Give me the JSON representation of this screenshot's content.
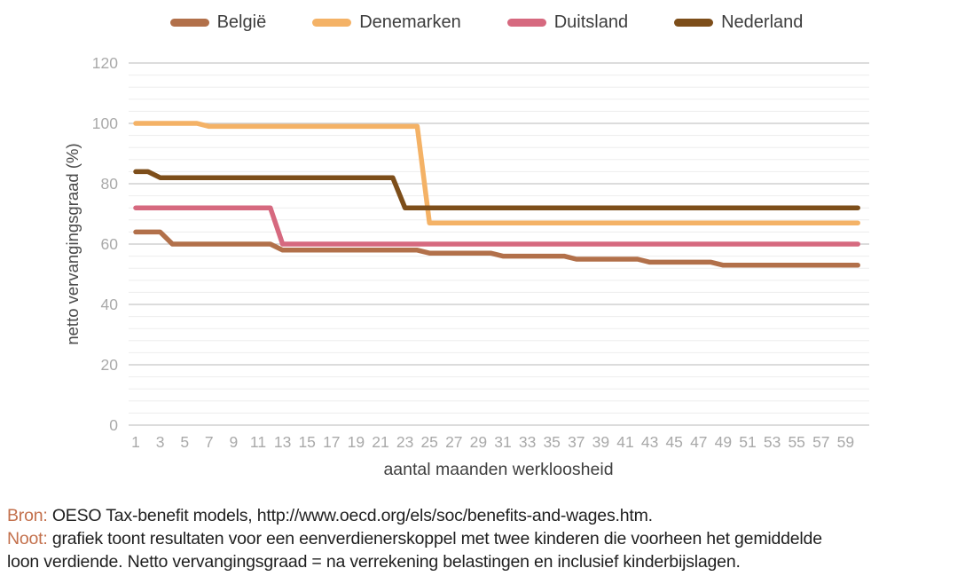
{
  "chart_data": {
    "type": "line",
    "title": "",
    "xlabel": "aantal maanden werkloosheid",
    "ylabel": "netto vervangingsgraad (%)",
    "x_range": [
      1,
      60
    ],
    "x_ticks": [
      1,
      3,
      5,
      7,
      9,
      11,
      13,
      15,
      17,
      19,
      21,
      23,
      25,
      27,
      29,
      31,
      33,
      35,
      37,
      39,
      41,
      43,
      45,
      47,
      49,
      51,
      53,
      55,
      57,
      59
    ],
    "ylim": [
      0,
      120
    ],
    "y_ticks": [
      0,
      20,
      40,
      60,
      80,
      100,
      120
    ],
    "y_minor_step": 4,
    "grid": "horizontal",
    "legend_position": "top",
    "series": [
      {
        "name": "België",
        "color": "#b2704a",
        "unit": "%",
        "segments": [
          {
            "from": 1,
            "to": 3,
            "value": 64
          },
          {
            "from": 4,
            "to": 12,
            "value": 60
          },
          {
            "from": 13,
            "to": 24,
            "value": 58
          },
          {
            "from": 25,
            "to": 30,
            "value": 57
          },
          {
            "from": 31,
            "to": 36,
            "value": 56
          },
          {
            "from": 37,
            "to": 42,
            "value": 55
          },
          {
            "from": 43,
            "to": 48,
            "value": 54
          },
          {
            "from": 49,
            "to": 60,
            "value": 53
          }
        ]
      },
      {
        "name": "Denemarken",
        "color": "#f4b266",
        "unit": "%",
        "segments": [
          {
            "from": 1,
            "to": 6,
            "value": 100
          },
          {
            "from": 7,
            "to": 24,
            "value": 99
          },
          {
            "from": 25,
            "to": 60,
            "value": 67
          }
        ]
      },
      {
        "name": "Duitsland",
        "color": "#d6697f",
        "unit": "%",
        "segments": [
          {
            "from": 1,
            "to": 12,
            "value": 72
          },
          {
            "from": 13,
            "to": 60,
            "value": 60
          }
        ]
      },
      {
        "name": "Nederland",
        "color": "#7d4e1a",
        "unit": "%",
        "segments": [
          {
            "from": 1,
            "to": 2,
            "value": 84
          },
          {
            "from": 3,
            "to": 22,
            "value": 82
          },
          {
            "from": 23,
            "to": 60,
            "value": 72
          }
        ]
      }
    ]
  },
  "footer": {
    "bron_label": "Bron:",
    "bron_text": " OESO Tax-benefit models, http://www.oecd.org/els/soc/benefits-and-wages.htm.",
    "noot_label": "Noot:",
    "noot_line1": " grafiek toont resultaten voor een eenverdienerskoppel met twee kinderen die voorheen het gemiddelde",
    "noot_line2": "loon verdiende. Netto vervangingsgraad = na verrekening belastingen en inclusief kinderbijslagen."
  },
  "style": {
    "accent_color": "#c3704c",
    "tick_label_color": "#a9a9a9",
    "axis_title_color": "#4a4a4a",
    "major_grid_color": "#c6c6c6",
    "minor_grid_color": "#ededed"
  }
}
